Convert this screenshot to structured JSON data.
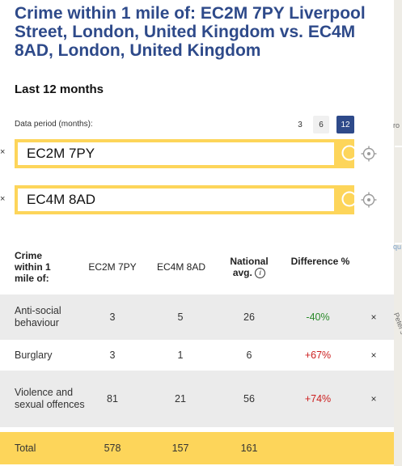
{
  "header": {
    "title": "Crime within 1 mile of: EC2M 7PY Liverpool Street, London, United Kingdom vs. EC4M 8AD, London, United Kingdom",
    "subtitle": "Last 12 months"
  },
  "period": {
    "label": "Data period (months):",
    "options": [
      "3",
      "6",
      "12"
    ],
    "selected": "12"
  },
  "searches": [
    {
      "remove": "×",
      "value": "EC2M 7PY"
    },
    {
      "remove": "×",
      "value": "EC4M 8AD"
    }
  ],
  "table": {
    "headers": {
      "category": "Crime within 1 mile of:",
      "loc1": "EC2M 7PY",
      "loc2": "EC4M 8AD",
      "national": "National avg.",
      "info": "i",
      "difference": "Difference %"
    },
    "rows": [
      {
        "category": "Anti-social behaviour",
        "loc1": "3",
        "loc2": "5",
        "national": "26",
        "difference": "-40%",
        "remove": "×"
      },
      {
        "category": "Burglary",
        "loc1": "3",
        "loc2": "1",
        "national": "6",
        "difference": "+67%",
        "remove": "×"
      },
      {
        "category": "Violence and sexual offences",
        "loc1": "81",
        "loc2": "21",
        "national": "56",
        "difference": "+74%",
        "remove": "×"
      }
    ],
    "total": {
      "label": "Total",
      "loc1": "578",
      "loc2": "157",
      "national": "161"
    }
  },
  "map": {
    "labels": [
      "ro",
      "Peter's",
      "qu"
    ]
  },
  "colors": {
    "title": "#2e4a8a",
    "accent": "#fdd55a",
    "selected_period": "#2e4a8a",
    "negative": "#2a8a2a",
    "positive": "#cc1f1f"
  }
}
